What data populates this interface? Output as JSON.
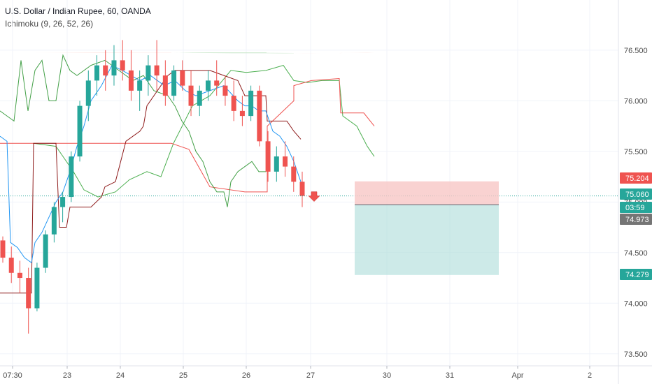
{
  "header": {
    "symbol_title": "U.S. Dollar / Indian Rupee, 60, OANDA",
    "indicator": "Ichimoku (9, 26, 52, 26)"
  },
  "colors": {
    "up": "#26a69a",
    "down": "#ef5350",
    "conversion": "#2196f3",
    "base": "#8e1b1b",
    "lagging": "#43a047",
    "cloud_bull": "#c8e6c9",
    "cloud_bear": "#fde0dc",
    "spanA": "#4caf50",
    "spanB": "#ef5350",
    "last_price": "#26a69a",
    "tp_zone": "#b2dfdb",
    "sl_zone": "#f8c7c5"
  },
  "chart_data": {
    "type": "candlestick",
    "title": "U.S. Dollar / Indian Rupee, 60, OANDA",
    "indicator": "Ichimoku (9, 26, 52, 26)",
    "x_tick_labels": [
      "07:30",
      "23",
      "24",
      "25",
      "26",
      "27",
      "30",
      "31",
      "Apr",
      "2"
    ],
    "y_tick_labels": [
      "76.500",
      "76.000",
      "75.500",
      "75.000",
      "74.500",
      "74.000",
      "73.500"
    ],
    "ylim": [
      73.45,
      76.72
    ],
    "price_axis_badges": [
      {
        "label": "75.204",
        "value": 75.204,
        "color": "#ef5350"
      },
      {
        "label": "75.060",
        "value": 75.06,
        "color": "#26a69a"
      },
      {
        "label": "03:59",
        "value": 74.98,
        "color": "#26a69a"
      },
      {
        "label": "74.973",
        "value": 74.973,
        "color": "#757575"
      },
      {
        "label": "74.279",
        "value": 74.279,
        "color": "#26a69a"
      }
    ],
    "last_price": 75.06,
    "position": {
      "entry": 74.973,
      "stop_loss": 75.204,
      "take_profit": 74.279,
      "direction": "short"
    },
    "candles_ohlc_sampled": [
      [
        74.62,
        74.66,
        74.4,
        74.45
      ],
      [
        74.45,
        74.56,
        74.2,
        74.3
      ],
      [
        74.3,
        74.42,
        74.1,
        74.25
      ],
      [
        74.25,
        74.35,
        73.7,
        73.95
      ],
      [
        73.95,
        74.4,
        73.92,
        74.35
      ],
      [
        74.35,
        74.72,
        74.3,
        74.68
      ],
      [
        74.68,
        75.0,
        74.6,
        74.95
      ],
      [
        74.95,
        75.1,
        74.8,
        75.05
      ],
      [
        75.05,
        75.5,
        75.0,
        75.45
      ],
      [
        75.45,
        76.0,
        75.4,
        75.95
      ],
      [
        75.95,
        76.3,
        75.8,
        76.2
      ],
      [
        76.2,
        76.45,
        76.05,
        76.35
      ],
      [
        76.35,
        76.5,
        76.1,
        76.25
      ],
      [
        76.25,
        76.55,
        76.15,
        76.4
      ],
      [
        76.4,
        76.6,
        76.2,
        76.3
      ],
      [
        76.3,
        76.5,
        76.0,
        76.1
      ],
      [
        76.1,
        76.3,
        75.9,
        76.2
      ],
      [
        76.2,
        76.45,
        76.05,
        76.35
      ],
      [
        76.35,
        76.6,
        76.1,
        76.25
      ],
      [
        76.25,
        76.4,
        75.95,
        76.05
      ],
      [
        76.05,
        76.35,
        76.0,
        76.3
      ],
      [
        76.3,
        76.4,
        76.1,
        76.15
      ],
      [
        76.15,
        76.3,
        75.85,
        75.95
      ],
      [
        75.95,
        76.15,
        75.85,
        76.1
      ],
      [
        76.1,
        76.3,
        76.0,
        76.2
      ],
      [
        76.2,
        76.4,
        76.05,
        76.15
      ],
      [
        76.15,
        76.25,
        75.95,
        76.05
      ],
      [
        76.05,
        76.2,
        75.8,
        75.9
      ],
      [
        75.9,
        76.05,
        75.75,
        75.85
      ],
      [
        75.85,
        76.15,
        75.8,
        76.1
      ],
      [
        76.1,
        76.15,
        75.55,
        75.6
      ],
      [
        75.6,
        75.7,
        75.2,
        75.3
      ],
      [
        75.3,
        75.55,
        75.2,
        75.45
      ],
      [
        75.45,
        75.6,
        75.25,
        75.35
      ],
      [
        75.35,
        75.45,
        75.1,
        75.2
      ],
      [
        75.2,
        75.3,
        74.95,
        75.06
      ]
    ],
    "series": [
      {
        "name": "Conversion Line"
      },
      {
        "name": "Base Line"
      },
      {
        "name": "Lagging Span"
      },
      {
        "name": "Lead 1"
      },
      {
        "name": "Lead 2"
      }
    ],
    "grid": true
  }
}
